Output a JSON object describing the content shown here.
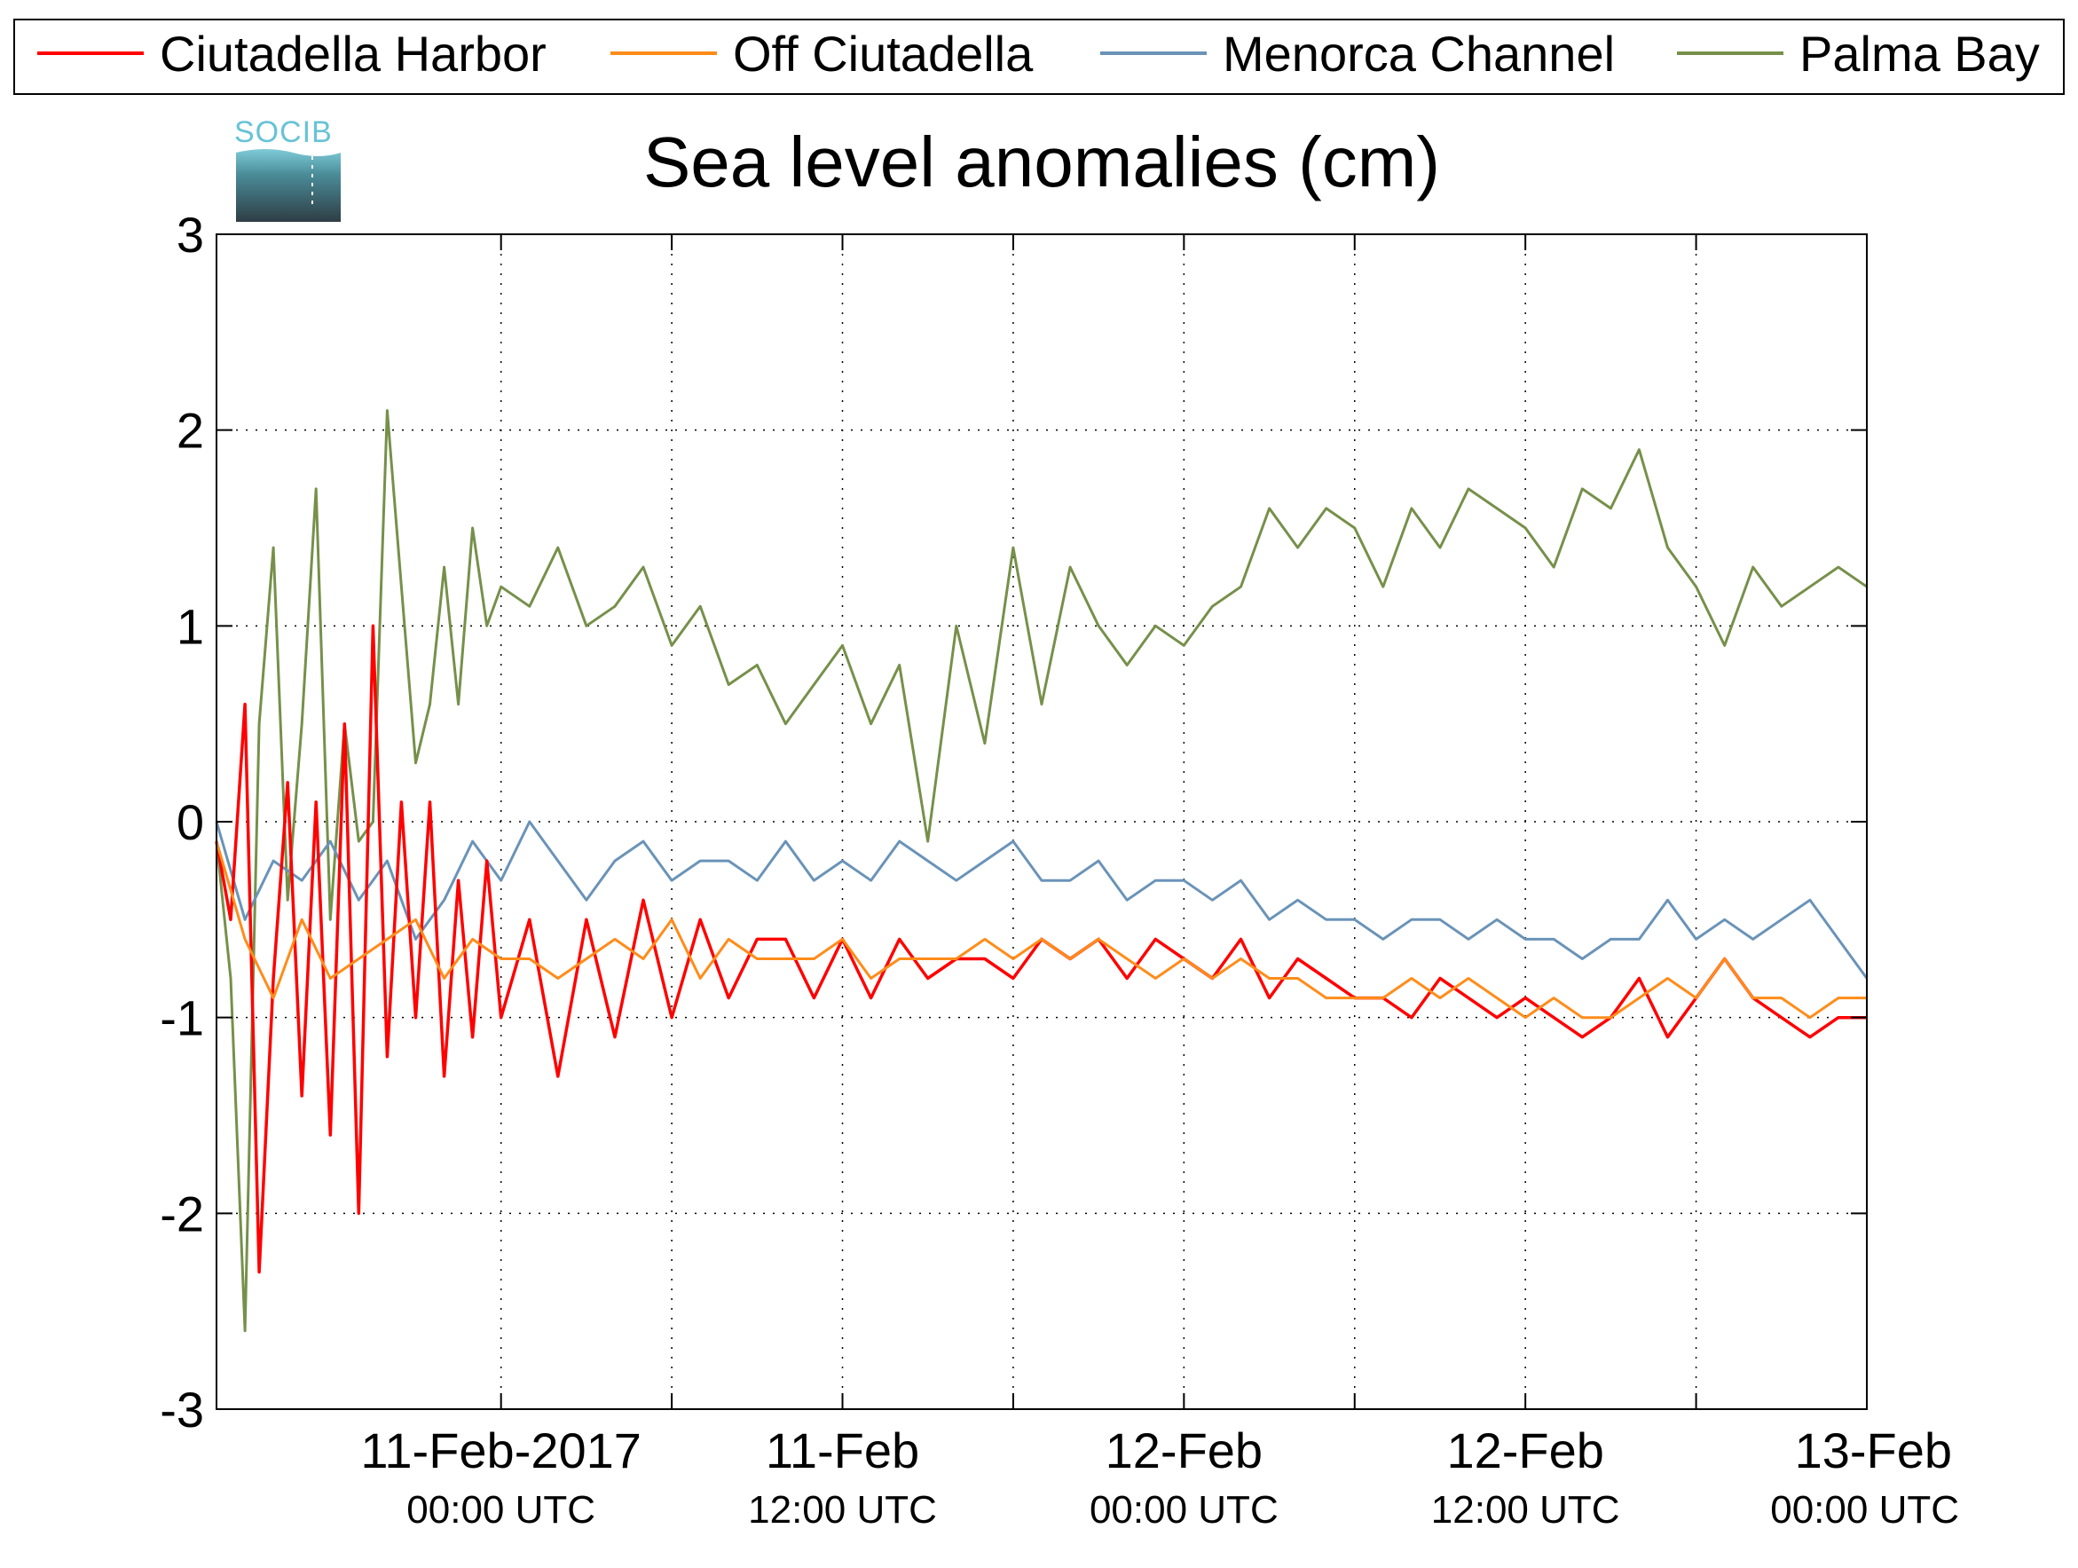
{
  "chart_data": {
    "type": "line",
    "title": "Sea level anomalies (cm)",
    "xlabel": "",
    "ylabel": "",
    "logo_text": "SOCIB",
    "ylim": [
      -3,
      3
    ],
    "y_ticks": [
      "-3",
      "-2",
      "-1",
      "0",
      "1",
      "2",
      "3"
    ],
    "x_range_hours": [
      -10,
      48
    ],
    "x_tick_labels": [
      {
        "main": "11-Feb-2017",
        "sub": "00:00 UTC"
      },
      {
        "main": "11-Feb",
        "sub": "12:00 UTC"
      },
      {
        "main": "12-Feb",
        "sub": "00:00 UTC"
      },
      {
        "main": "12-Feb",
        "sub": "12:00 UTC"
      },
      {
        "main": "13-Feb",
        "sub": "00:00 UTC"
      }
    ],
    "grid": true,
    "legend_position": "top",
    "colors": {
      "ciutadella_harbor": "#ff0000",
      "off_ciutadella": "#ff8c1a",
      "menorca_channel": "#6a93b8",
      "palma_bay": "#76904a"
    },
    "series": [
      {
        "name": "Ciutadella Harbor",
        "color": "#ff0000",
        "x": [
          -10,
          -9.5,
          -9,
          -8.5,
          -8,
          -7.5,
          -7,
          -6.5,
          -6,
          -5.5,
          -5,
          -4.5,
          -4,
          -3.5,
          -3,
          -2.5,
          -2,
          -1.5,
          -1,
          -0.5,
          0,
          1,
          2,
          3,
          4,
          5,
          6,
          7,
          8,
          9,
          10,
          11,
          12,
          13,
          14,
          15,
          16,
          17,
          18,
          19,
          20,
          21,
          22,
          23,
          24,
          25,
          26,
          27,
          28,
          29,
          30,
          31,
          32,
          33,
          34,
          35,
          36,
          37,
          38,
          39,
          40,
          41,
          42,
          43,
          44,
          45,
          46,
          47,
          48
        ],
        "y": [
          -0.1,
          -0.5,
          0.6,
          -2.3,
          -0.8,
          0.2,
          -1.4,
          0.1,
          -1.6,
          0.5,
          -2.0,
          1.0,
          -1.2,
          0.1,
          -1.0,
          0.1,
          -1.3,
          -0.3,
          -1.1,
          -0.2,
          -1.0,
          -0.5,
          -1.3,
          -0.5,
          -1.1,
          -0.4,
          -1.0,
          -0.5,
          -0.9,
          -0.6,
          -0.6,
          -0.9,
          -0.6,
          -0.9,
          -0.6,
          -0.8,
          -0.7,
          -0.7,
          -0.8,
          -0.6,
          -0.7,
          -0.6,
          -0.8,
          -0.6,
          -0.7,
          -0.8,
          -0.6,
          -0.9,
          -0.7,
          -0.8,
          -0.9,
          -0.9,
          -1.0,
          -0.8,
          -0.9,
          -1.0,
          -0.9,
          -1.0,
          -1.1,
          -1.0,
          -0.8,
          -1.1,
          -0.9,
          -0.7,
          -0.9,
          -1.0,
          -1.1,
          -1.0,
          -1.0
        ],
        "values_note": ""
      },
      {
        "name": "Off Ciutadella",
        "color": "#ff8c1a",
        "x": [
          -10,
          -9,
          -8,
          -7,
          -6,
          -5,
          -4,
          -3,
          -2,
          -1,
          0,
          1,
          2,
          3,
          4,
          5,
          6,
          7,
          8,
          9,
          10,
          11,
          12,
          13,
          14,
          15,
          16,
          17,
          18,
          19,
          20,
          21,
          22,
          23,
          24,
          25,
          26,
          27,
          28,
          29,
          30,
          31,
          32,
          33,
          34,
          35,
          36,
          37,
          38,
          39,
          40,
          41,
          42,
          43,
          44,
          45,
          46,
          47,
          48
        ],
        "y": [
          -0.1,
          -0.6,
          -0.9,
          -0.5,
          -0.8,
          -0.7,
          -0.6,
          -0.5,
          -0.8,
          -0.6,
          -0.7,
          -0.7,
          -0.8,
          -0.7,
          -0.6,
          -0.7,
          -0.5,
          -0.8,
          -0.6,
          -0.7,
          -0.7,
          -0.7,
          -0.6,
          -0.8,
          -0.7,
          -0.7,
          -0.7,
          -0.6,
          -0.7,
          -0.6,
          -0.7,
          -0.6,
          -0.7,
          -0.8,
          -0.7,
          -0.8,
          -0.7,
          -0.8,
          -0.8,
          -0.9,
          -0.9,
          -0.9,
          -0.8,
          -0.9,
          -0.8,
          -0.9,
          -1.0,
          -0.9,
          -1.0,
          -1.0,
          -0.9,
          -0.8,
          -0.9,
          -0.7,
          -0.9,
          -0.9,
          -1.0,
          -0.9,
          -0.9
        ],
        "values_note": ""
      },
      {
        "name": "Menorca Channel",
        "color": "#6a93b8",
        "x": [
          -10,
          -9,
          -8,
          -7,
          -6,
          -5,
          -4,
          -3,
          -2,
          -1,
          0,
          1,
          2,
          3,
          4,
          5,
          6,
          7,
          8,
          9,
          10,
          11,
          12,
          13,
          14,
          15,
          16,
          17,
          18,
          19,
          20,
          21,
          22,
          23,
          24,
          25,
          26,
          27,
          28,
          29,
          30,
          31,
          32,
          33,
          34,
          35,
          36,
          37,
          38,
          39,
          40,
          41,
          42,
          43,
          44,
          45,
          46,
          47,
          48
        ],
        "y": [
          0.0,
          -0.5,
          -0.2,
          -0.3,
          -0.1,
          -0.4,
          -0.2,
          -0.6,
          -0.4,
          -0.1,
          -0.3,
          0.0,
          -0.2,
          -0.4,
          -0.2,
          -0.1,
          -0.3,
          -0.2,
          -0.2,
          -0.3,
          -0.1,
          -0.3,
          -0.2,
          -0.3,
          -0.1,
          -0.2,
          -0.3,
          -0.2,
          -0.1,
          -0.3,
          -0.3,
          -0.2,
          -0.4,
          -0.3,
          -0.3,
          -0.4,
          -0.3,
          -0.5,
          -0.4,
          -0.5,
          -0.5,
          -0.6,
          -0.5,
          -0.5,
          -0.6,
          -0.5,
          -0.6,
          -0.6,
          -0.7,
          -0.6,
          -0.6,
          -0.4,
          -0.6,
          -0.5,
          -0.6,
          -0.5,
          -0.4,
          -0.6,
          -0.8
        ],
        "values_note": ""
      },
      {
        "name": "Palma Bay",
        "color": "#76904a",
        "x": [
          -10,
          -9.5,
          -9,
          -8.5,
          -8,
          -7.5,
          -7,
          -6.5,
          -6,
          -5.5,
          -5,
          -4.5,
          -4,
          -3.5,
          -3,
          -2.5,
          -2,
          -1.5,
          -1,
          -0.5,
          0,
          1,
          2,
          3,
          4,
          5,
          6,
          7,
          8,
          9,
          10,
          11,
          12,
          13,
          14,
          15,
          16,
          17,
          18,
          19,
          20,
          21,
          22,
          23,
          24,
          25,
          26,
          27,
          28,
          29,
          30,
          31,
          32,
          33,
          34,
          35,
          36,
          37,
          38,
          39,
          40,
          41,
          42,
          43,
          44,
          45,
          46,
          47,
          48
        ],
        "y": [
          -0.1,
          -0.8,
          -2.6,
          0.5,
          1.4,
          -0.4,
          0.5,
          1.7,
          -0.5,
          0.5,
          -0.1,
          0.0,
          2.1,
          1.2,
          0.3,
          0.6,
          1.3,
          0.6,
          1.5,
          1.0,
          1.2,
          1.1,
          1.4,
          1.0,
          1.1,
          1.3,
          0.9,
          1.1,
          0.7,
          0.8,
          0.5,
          0.7,
          0.9,
          0.5,
          0.8,
          -0.1,
          1.0,
          0.4,
          1.4,
          0.6,
          1.3,
          1.0,
          0.8,
          1.0,
          0.9,
          1.1,
          1.2,
          1.6,
          1.4,
          1.6,
          1.5,
          1.2,
          1.6,
          1.4,
          1.7,
          1.6,
          1.5,
          1.3,
          1.7,
          1.6,
          1.9,
          1.4,
          1.2,
          0.9,
          1.3,
          1.1,
          1.2,
          1.3,
          1.2
        ],
        "values_note": ""
      }
    ]
  }
}
